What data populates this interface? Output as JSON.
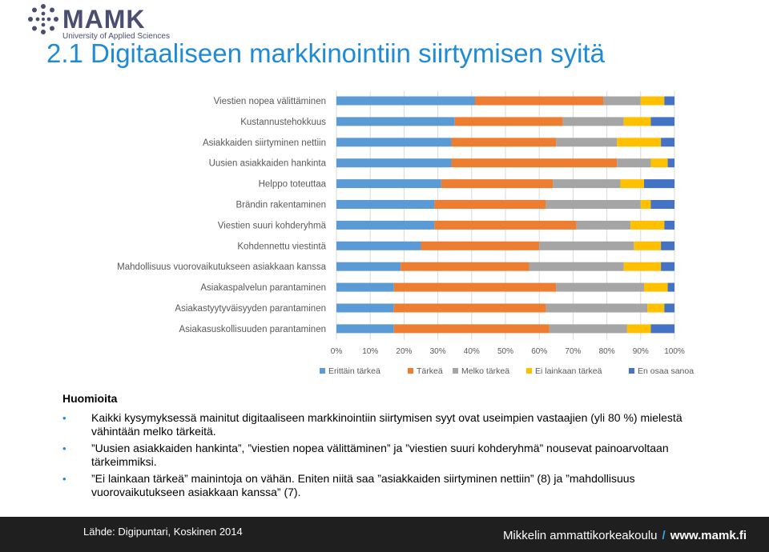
{
  "header": {
    "logo_text": "MAMK",
    "logo_subtitle": "University of Applied Sciences",
    "title": "2.1 Digitaaliseen markkinointiin siirtymisen syitä"
  },
  "chart_data": {
    "type": "bar",
    "orientation": "horizontal",
    "stacked": true,
    "percent": true,
    "categories": [
      "Viestien nopea välittäminen",
      "Kustannustehokkuus",
      "Asiakkaiden siirtyminen nettiin",
      "Uusien asiakkaiden hankinta",
      "Helppo toteuttaa",
      "Brändin rakentaminen",
      "Viestien suuri kohderyhmä",
      "Kohdennettu viestintä",
      "Mahdollisuus vuorovaikutukseen asiakkaan kanssa",
      "Asiakaspalvelun parantaminen",
      "Asiakastyytyväisyyden parantaminen",
      "Asiakasuskollisuuden parantaminen"
    ],
    "series": [
      {
        "name": "Erittäin tärkeä",
        "color": "#5b9bd5",
        "values": [
          41,
          35,
          34,
          34,
          31,
          29,
          29,
          25,
          19,
          17,
          17,
          17
        ]
      },
      {
        "name": "Tärkeä",
        "color": "#ed7d31",
        "values": [
          38,
          32,
          31,
          49,
          33,
          33,
          42,
          35,
          38,
          48,
          45,
          46
        ]
      },
      {
        "name": "Melko tärkeä",
        "color": "#a5a5a5",
        "values": [
          11,
          18,
          18,
          10,
          20,
          28,
          16,
          28,
          28,
          26,
          30,
          23
        ]
      },
      {
        "name": "Ei lainkaan tärkeä",
        "color": "#ffc000",
        "values": [
          7,
          8,
          13,
          5,
          7,
          3,
          10,
          8,
          11,
          7,
          5,
          7
        ]
      },
      {
        "name": "En osaa sanoa",
        "color": "#4472c4",
        "values": [
          3,
          7,
          4,
          2,
          9,
          7,
          3,
          4,
          4,
          2,
          3,
          7
        ]
      }
    ],
    "xlim": [
      0,
      100
    ],
    "xticks": [
      "0%",
      "10%",
      "20%",
      "30%",
      "40%",
      "50%",
      "60%",
      "70%",
      "80%",
      "90%",
      "100%"
    ],
    "grid": true,
    "legend_position": "bottom"
  },
  "notes": {
    "heading": "Huomioita",
    "items": [
      "Kaikki kysymyksessä mainitut digitaaliseen markkinointiin siirtymisen syyt ovat useimpien vastaajien (yli 80 %) mielestä vähintään melko tärkeitä.",
      "”Uusien asiakkaiden hankinta”,  ”viestien nopea välittäminen” ja ”viestien suuri kohderyhmä” nousevat painoarvoltaan tärkeimmiksi.",
      "”Ei lainkaan tärkeä” mainintoja on vähän. Eniten niitä saa  ”asiakkaiden siirtyminen nettiin” (8)  ja ”mahdollisuus vuorovaikutukseen asiakkaan kanssa” (7)."
    ]
  },
  "footer": {
    "source": "Lähde: Digipuntari, Koskinen 2014",
    "org": "Mikkelin ammattikorkeakoulu",
    "separator": "/",
    "url": "www.mamk.fi"
  }
}
